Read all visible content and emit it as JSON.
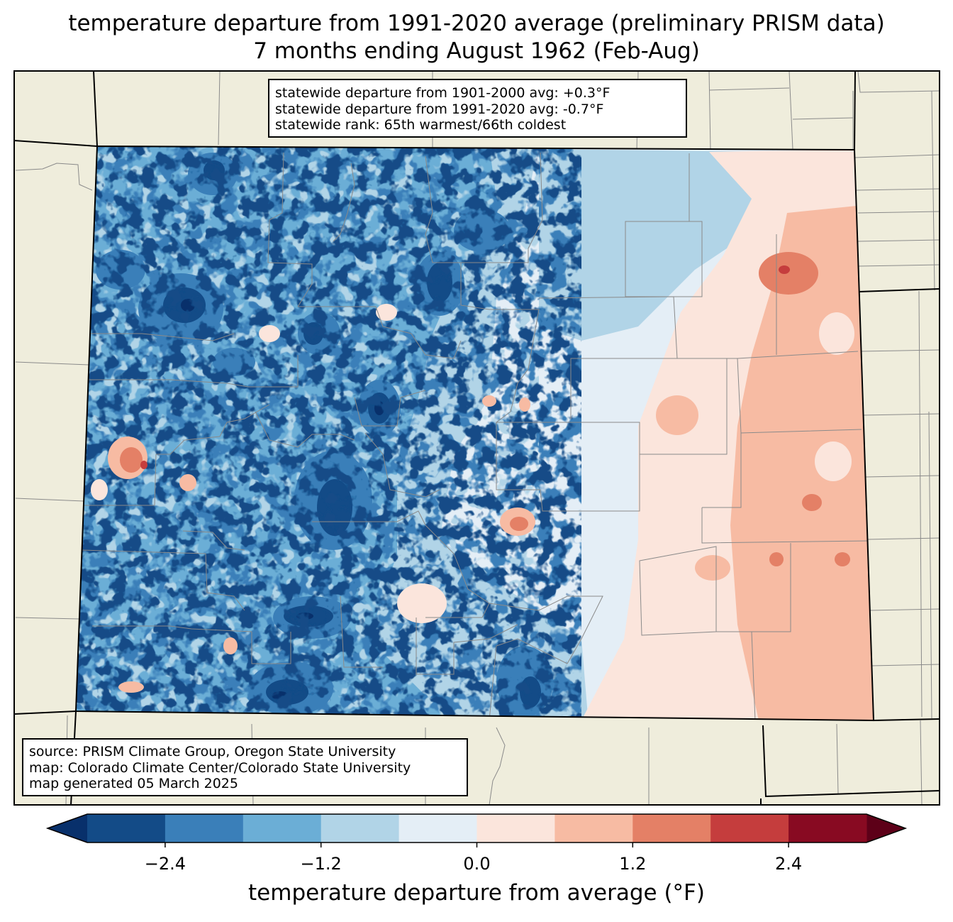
{
  "title": {
    "line1": "temperature departure from 1991-2020 average (preliminary PRISM data)",
    "line2": "7 months ending August 1962 (Feb-Aug)"
  },
  "stats": {
    "line1": "statewide departure from 1901-2000 avg: +0.3°F",
    "line2": "statewide departure from 1991-2020 avg: -0.7°F",
    "line3": "statewide rank: 65th warmest/66th coldest"
  },
  "source": {
    "line1": "source: PRISM Climate Group, Oregon State University",
    "line2": "map: Colorado Climate Center/Colorado State University",
    "line3": "map generated 05 March 2025"
  },
  "colorbar": {
    "label": "temperature departure from average (°F)",
    "ticks": [
      "−2.4",
      "−1.2",
      "0.0",
      "1.2",
      "2.4"
    ],
    "bounds": [
      -3.0,
      -2.4,
      -1.8,
      -1.2,
      -0.6,
      0.0,
      0.6,
      1.2,
      1.8,
      2.4,
      3.0
    ],
    "colors": [
      "#08306b",
      "#134b87",
      "#3a7fb9",
      "#6baed6",
      "#b1d4e7",
      "#e4eef6",
      "#fbe5dc",
      "#f7bba3",
      "#e48066",
      "#c53d3d",
      "#880a22",
      "#5d0018"
    ]
  },
  "map": {
    "land_color": "#efeddc",
    "state": "Colorado"
  }
}
